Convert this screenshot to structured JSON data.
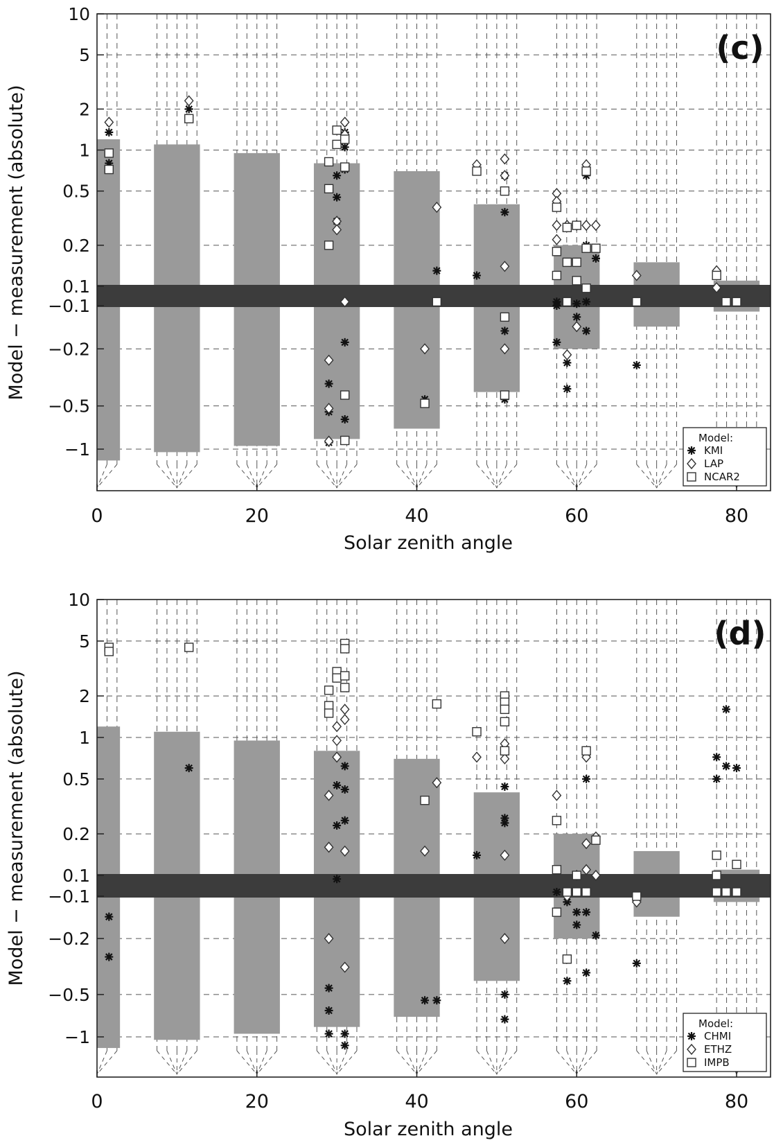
{
  "chart_data": [
    {
      "type": "scatter",
      "panel_label": "(c)",
      "xlabel": "Solar zenith angle",
      "ylabel": "Model − measurement (absolute)",
      "xlim": [
        0,
        85
      ],
      "x_ticks": [
        0,
        20,
        40,
        60,
        80
      ],
      "y_ticks_labels": [
        "10",
        "5",
        "2",
        "1",
        "0.5",
        "0.2",
        "0.1",
        "−0.1",
        "−0.2",
        "−0.5",
        "−1"
      ],
      "y_ticks_values": [
        10,
        5,
        2,
        1,
        0.5,
        0.2,
        0.1,
        -0.1,
        -0.2,
        -0.5,
        -1
      ],
      "y_scale": "symmetric log (|y| ≥ 0.1), central band |y| < 0.1",
      "grid": true,
      "legend": {
        "title": "Model:",
        "position": "bottom-right",
        "entries": [
          {
            "name": "KMI",
            "marker": "asterisk"
          },
          {
            "name": "LAP",
            "marker": "diamond"
          },
          {
            "name": "NCAR2",
            "marker": "square"
          }
        ]
      },
      "uncertainty_bars": [
        {
          "x": 0,
          "upper": 1.2,
          "lower": -1.2
        },
        {
          "x": 10,
          "upper": 1.1,
          "lower": -1.05
        },
        {
          "x": 20,
          "upper": 0.95,
          "lower": -0.95
        },
        {
          "x": 30,
          "upper": 0.8,
          "lower": -0.85
        },
        {
          "x": 40,
          "upper": 0.7,
          "lower": -0.72
        },
        {
          "x": 50,
          "upper": 0.4,
          "lower": -0.4
        },
        {
          "x": 60,
          "upper": 0.2,
          "lower": -0.2
        },
        {
          "x": 70,
          "upper": 0.15,
          "lower": -0.14
        },
        {
          "x": 80,
          "upper": 0.11,
          "lower": -0.11
        }
      ],
      "series": [
        {
          "name": "KMI",
          "marker": "asterisk",
          "points": [
            [
              1.5,
              1.35
            ],
            [
              1.5,
              0.8
            ],
            [
              11.5,
              2.0
            ],
            [
              29,
              -0.9
            ],
            [
              29,
              -0.55
            ],
            [
              29,
              -0.35
            ],
            [
              30,
              0.65
            ],
            [
              30,
              0.45
            ],
            [
              30,
              0.3
            ],
            [
              31,
              1.35
            ],
            [
              31,
              1.05
            ],
            [
              31,
              0.72
            ],
            [
              31,
              -0.18
            ],
            [
              31,
              -0.62
            ],
            [
              42.5,
              0.13
            ],
            [
              41,
              -0.45
            ],
            [
              47.5,
              0.12
            ],
            [
              51,
              0.65
            ],
            [
              51,
              0.35
            ],
            [
              51,
              -0.15
            ],
            [
              51,
              -0.45
            ],
            [
              57.5,
              -0.06
            ],
            [
              57.5,
              -0.1
            ],
            [
              57.5,
              -0.18
            ],
            [
              58.8,
              -0.25
            ],
            [
              58.8,
              -0.38
            ],
            [
              58.8,
              -0.06
            ],
            [
              60,
              -0.12
            ],
            [
              60,
              -0.08
            ],
            [
              61.2,
              0.65
            ],
            [
              61.2,
              0.2
            ],
            [
              61.2,
              -0.15
            ],
            [
              61.2,
              -0.06
            ],
            [
              62.4,
              0.16
            ],
            [
              67.5,
              -0.26
            ],
            [
              80,
              -0.06
            ]
          ]
        },
        {
          "name": "LAP",
          "marker": "diamond",
          "points": [
            [
              1.5,
              1.6
            ],
            [
              11.5,
              2.3
            ],
            [
              29,
              -0.24
            ],
            [
              29,
              -0.52
            ],
            [
              29,
              -0.88
            ],
            [
              30,
              0.3
            ],
            [
              30,
              0.26
            ],
            [
              31,
              1.6
            ],
            [
              31,
              1.3
            ],
            [
              31,
              -0.06
            ],
            [
              42.5,
              0.38
            ],
            [
              41,
              -0.2
            ],
            [
              47.5,
              0.78
            ],
            [
              51,
              0.86
            ],
            [
              51,
              0.65
            ],
            [
              51,
              0.14
            ],
            [
              51,
              -0.2
            ],
            [
              57.5,
              0.48
            ],
            [
              57.5,
              0.42
            ],
            [
              57.5,
              0.28
            ],
            [
              57.5,
              0.22
            ],
            [
              58.8,
              0.28
            ],
            [
              58.8,
              -0.22
            ],
            [
              60,
              0.28
            ],
            [
              60,
              -0.14
            ],
            [
              61.2,
              0.78
            ],
            [
              61.2,
              0.28
            ],
            [
              62.4,
              0.28
            ],
            [
              67.5,
              0.12
            ],
            [
              77.5,
              0.13
            ],
            [
              77.5,
              0.085
            ]
          ]
        },
        {
          "name": "NCAR2",
          "marker": "square",
          "points": [
            [
              1.5,
              0.95
            ],
            [
              1.5,
              0.72
            ],
            [
              11.5,
              1.7
            ],
            [
              29,
              0.82
            ],
            [
              29,
              0.52
            ],
            [
              29,
              0.2
            ],
            [
              30,
              1.4
            ],
            [
              30,
              1.1
            ],
            [
              31,
              1.2
            ],
            [
              31,
              0.75
            ],
            [
              31,
              -0.42
            ],
            [
              31,
              -0.87
            ],
            [
              42.5,
              -0.06
            ],
            [
              41,
              -0.48
            ],
            [
              47.5,
              0.7
            ],
            [
              51,
              0.5
            ],
            [
              51,
              -0.12
            ],
            [
              51,
              -0.42
            ],
            [
              57.5,
              0.38
            ],
            [
              57.5,
              0.18
            ],
            [
              57.5,
              0.12
            ],
            [
              58.8,
              0.27
            ],
            [
              58.8,
              0.15
            ],
            [
              58.8,
              -0.06
            ],
            [
              60,
              0.28
            ],
            [
              60,
              0.15
            ],
            [
              60,
              0.11
            ],
            [
              61.2,
              0.7
            ],
            [
              61.2,
              0.19
            ],
            [
              61.2,
              0.08
            ],
            [
              62.4,
              0.19
            ],
            [
              67.5,
              -0.06
            ],
            [
              77.5,
              0.12
            ],
            [
              78.7,
              -0.06
            ],
            [
              80,
              -0.06
            ]
          ]
        }
      ]
    },
    {
      "type": "scatter",
      "panel_label": "(d)",
      "xlabel": "Solar zenith angle",
      "ylabel": "Model − measurement (absolute)",
      "xlim": [
        0,
        85
      ],
      "x_ticks": [
        0,
        20,
        40,
        60,
        80
      ],
      "y_ticks_labels": [
        "10",
        "5",
        "2",
        "1",
        "0.5",
        "0.2",
        "0.1",
        "−0.1",
        "−0.2",
        "−0.5",
        "−1"
      ],
      "y_ticks_values": [
        10,
        5,
        2,
        1,
        0.5,
        0.2,
        0.1,
        -0.1,
        -0.2,
        -0.5,
        -1
      ],
      "y_scale": "symmetric log (|y| ≥ 0.1), central band |y| < 0.1",
      "grid": true,
      "legend": {
        "title": "Model:",
        "position": "bottom-right",
        "entries": [
          {
            "name": "CHMI",
            "marker": "asterisk"
          },
          {
            "name": "ETHZ",
            "marker": "diamond"
          },
          {
            "name": "IMPB",
            "marker": "square"
          }
        ]
      },
      "uncertainty_bars": [
        {
          "x": 0,
          "upper": 1.2,
          "lower": -1.2
        },
        {
          "x": 10,
          "upper": 1.1,
          "lower": -1.05
        },
        {
          "x": 20,
          "upper": 0.95,
          "lower": -0.95
        },
        {
          "x": 30,
          "upper": 0.8,
          "lower": -0.85
        },
        {
          "x": 40,
          "upper": 0.7,
          "lower": -0.72
        },
        {
          "x": 50,
          "upper": 0.4,
          "lower": -0.4
        },
        {
          "x": 60,
          "upper": 0.2,
          "lower": -0.2
        },
        {
          "x": 70,
          "upper": 0.15,
          "lower": -0.14
        },
        {
          "x": 80,
          "upper": 0.11,
          "lower": -0.11
        }
      ],
      "series": [
        {
          "name": "CHMI",
          "marker": "asterisk",
          "points": [
            [
              1.5,
              -0.14
            ],
            [
              1.5,
              -0.27
            ],
            [
              11.5,
              0.6
            ],
            [
              29,
              -0.45
            ],
            [
              29,
              -0.65
            ],
            [
              29,
              -0.95
            ],
            [
              30,
              0.45
            ],
            [
              30,
              0.23
            ],
            [
              30,
              0.065
            ],
            [
              31,
              0.62
            ],
            [
              31,
              0.42
            ],
            [
              31,
              0.25
            ],
            [
              31,
              -0.95
            ],
            [
              31,
              -1.15
            ],
            [
              41,
              -0.55
            ],
            [
              42.5,
              -0.55
            ],
            [
              47.5,
              0.14
            ],
            [
              51,
              0.44
            ],
            [
              51,
              0.26
            ],
            [
              51,
              0.24
            ],
            [
              51,
              -0.5
            ],
            [
              51,
              -0.75
            ],
            [
              57.5,
              -0.06
            ],
            [
              58.8,
              -0.11
            ],
            [
              58.8,
              -0.28
            ],
            [
              58.8,
              -0.4
            ],
            [
              60,
              -0.06
            ],
            [
              60,
              -0.13
            ],
            [
              60,
              -0.16
            ],
            [
              61.2,
              0.5
            ],
            [
              61.2,
              -0.13
            ],
            [
              61.2,
              -0.35
            ],
            [
              62.4,
              -0.19
            ],
            [
              67.5,
              -0.3
            ],
            [
              77.5,
              0.72
            ],
            [
              77.5,
              0.5
            ],
            [
              78.7,
              1.6
            ],
            [
              78.7,
              0.62
            ],
            [
              80,
              0.6
            ]
          ]
        },
        {
          "name": "ETHZ",
          "marker": "diamond",
          "points": [
            [
              29,
              0.38
            ],
            [
              29,
              0.16
            ],
            [
              29,
              -0.2
            ],
            [
              30,
              1.2
            ],
            [
              30,
              0.95
            ],
            [
              30,
              0.72
            ],
            [
              31,
              1.6
            ],
            [
              31,
              1.35
            ],
            [
              31,
              0.15
            ],
            [
              31,
              -0.32
            ],
            [
              42.5,
              0.47
            ],
            [
              41,
              0.15
            ],
            [
              47.5,
              0.72
            ],
            [
              51,
              0.9
            ],
            [
              51,
              0.7
            ],
            [
              51,
              0.14
            ],
            [
              51,
              -0.2
            ],
            [
              57.5,
              0.38
            ],
            [
              58.8,
              -0.1
            ],
            [
              60,
              0.1
            ],
            [
              61.2,
              0.72
            ],
            [
              61.2,
              0.17
            ],
            [
              61.2,
              0.11
            ],
            [
              62.4,
              0.19
            ],
            [
              62.4,
              0.1
            ],
            [
              67.5,
              -0.11
            ]
          ]
        },
        {
          "name": "IMPB",
          "marker": "square",
          "points": [
            [
              1.5,
              4.5
            ],
            [
              1.5,
              4.2
            ],
            [
              11.5,
              4.5
            ],
            [
              29,
              2.2
            ],
            [
              29,
              1.7
            ],
            [
              29,
              1.5
            ],
            [
              30,
              3.0
            ],
            [
              30,
              2.7
            ],
            [
              31,
              4.8
            ],
            [
              31,
              4.4
            ],
            [
              31,
              2.8
            ],
            [
              31,
              2.3
            ],
            [
              41,
              0.35
            ],
            [
              42.5,
              1.75
            ],
            [
              47.5,
              1.1
            ],
            [
              51,
              2.0
            ],
            [
              51,
              1.8
            ],
            [
              51,
              1.6
            ],
            [
              51,
              1.3
            ],
            [
              51,
              0.8
            ],
            [
              57.5,
              0.25
            ],
            [
              57.5,
              0.11
            ],
            [
              57.5,
              -0.13
            ],
            [
              58.8,
              -0.06
            ],
            [
              58.8,
              -0.28
            ],
            [
              60,
              0.1
            ],
            [
              60,
              -0.06
            ],
            [
              61.2,
              0.8
            ],
            [
              61.2,
              -0.06
            ],
            [
              62.4,
              0.18
            ],
            [
              67.5,
              -0.1
            ],
            [
              77.5,
              0.14
            ],
            [
              77.5,
              0.1
            ],
            [
              77.5,
              -0.06
            ],
            [
              78.7,
              -0.06
            ],
            [
              80,
              0.12
            ],
            [
              80,
              -0.06
            ]
          ]
        }
      ]
    }
  ]
}
